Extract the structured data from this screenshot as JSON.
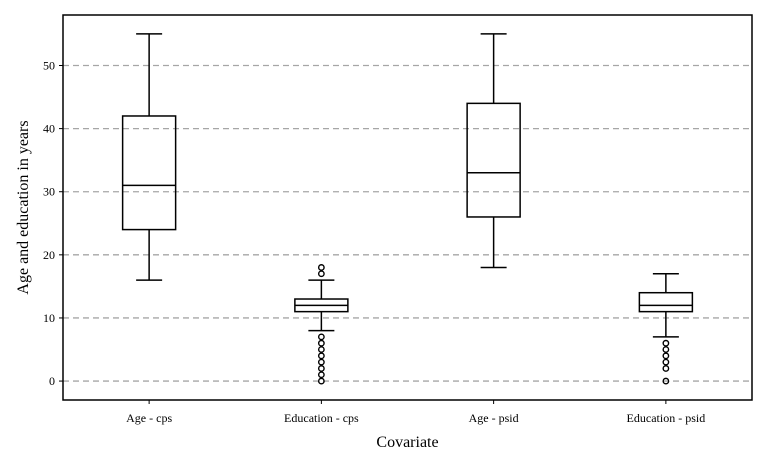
{
  "chart_data": {
    "type": "box",
    "xlabel": "Covariate",
    "ylabel": "Age and education in years",
    "ylim": [
      -3,
      58
    ],
    "yticks": [
      0,
      10,
      20,
      30,
      40,
      50
    ],
    "ytick_labels": [
      "0",
      "10",
      "20",
      "30",
      "40",
      "50"
    ],
    "grid": "horizontal-dashed",
    "categories": [
      "Age - cps",
      "Education - cps",
      "Age - psid",
      "Education - psid"
    ],
    "boxes": [
      {
        "category": "Age - cps",
        "whisker_low": 16,
        "q1": 24,
        "median": 31,
        "q3": 42,
        "whisker_high": 55,
        "outliers": []
      },
      {
        "category": "Education - cps",
        "whisker_low": 8,
        "q1": 11,
        "median": 12,
        "q3": 13,
        "whisker_high": 16,
        "outliers": [
          0,
          1,
          2,
          3,
          4,
          5,
          6,
          7,
          17,
          18
        ]
      },
      {
        "category": "Age - psid",
        "whisker_low": 18,
        "q1": 26,
        "median": 33,
        "q3": 44,
        "whisker_high": 55,
        "outliers": []
      },
      {
        "category": "Education - psid",
        "whisker_low": 7,
        "q1": 11,
        "median": 12,
        "q3": 14,
        "whisker_high": 17,
        "outliers": [
          0,
          2,
          3,
          4,
          5,
          6
        ]
      }
    ],
    "colors": {
      "box": "#000000",
      "grid": "#a6a6a6",
      "background": "#ffffff"
    }
  }
}
